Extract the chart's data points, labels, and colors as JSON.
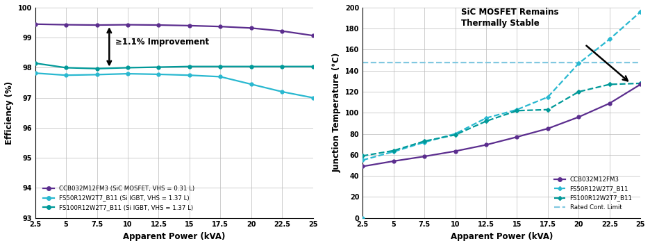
{
  "x_kva": [
    2.5,
    5,
    7.5,
    10,
    12.5,
    15,
    17.5,
    20,
    22.5,
    25
  ],
  "eff_sic": [
    99.45,
    99.43,
    99.42,
    99.43,
    99.42,
    99.4,
    99.37,
    99.32,
    99.22,
    99.07
  ],
  "eff_fs50": [
    97.82,
    97.75,
    97.77,
    97.8,
    97.78,
    97.75,
    97.7,
    97.45,
    97.2,
    97.0
  ],
  "eff_fs100": [
    98.15,
    98.0,
    97.97,
    98.0,
    98.02,
    98.04,
    98.04,
    98.04,
    98.04,
    98.04
  ],
  "temp_x": [
    2.5,
    5,
    7.5,
    10,
    12.5,
    15,
    17.5,
    20,
    22.5,
    25
  ],
  "temp_sic": [
    49,
    54,
    58.5,
    63.5,
    69.5,
    77,
    85,
    96,
    109,
    127
  ],
  "temp_fs50": [
    55,
    63,
    72,
    80,
    95,
    103,
    115,
    147,
    170,
    196
  ],
  "temp_fs100": [
    59,
    64,
    73,
    79,
    92,
    102,
    103,
    120,
    127,
    128
  ],
  "rated_limit": 148,
  "color_sic": "#5B2D8E",
  "color_fs50": "#29B8D0",
  "color_fs100": "#009999",
  "color_rated": "#80C8E0",
  "eff_xlabel": "Apparent Power (kVA)",
  "eff_ylabel": "Efficiency (%)",
  "temp_xlabel": "Apparent Power (kVA)",
  "temp_ylabel": "Junction Temperature (°C)",
  "legend1_sic": "CCB032M12FM3 (SiC MOSFET, VHS = 0.31 L)",
  "legend1_fs50": "FS50R12W2T7_B11 (Si IGBT, VHS = 1.37 L)",
  "legend1_fs100": "FS100R12W2T7_B11 (Si IGBT, VHS = 1.37 L)",
  "legend2_sic": "CCB032M12FM3",
  "legend2_fs50": "FS50R12W2T7_B11",
  "legend2_fs100": "FS100R12W2T7_B11",
  "legend2_rated": "Rated Cont. Limit",
  "annotation_text": "≥1.1% Improvement",
  "annotation2_text": "SiC MOSFET Remains\nThermally Stable",
  "eff_ylim": [
    93,
    100
  ],
  "temp_ylim": [
    0,
    200
  ],
  "xticks": [
    2.5,
    5,
    7.5,
    10,
    12.5,
    15,
    17.5,
    20,
    22.5,
    25
  ],
  "temp_yticks": [
    0,
    20,
    40,
    60,
    80,
    100,
    120,
    140,
    160,
    180,
    200
  ],
  "eff_yticks": [
    93,
    94,
    95,
    96,
    97,
    98,
    99,
    100
  ]
}
